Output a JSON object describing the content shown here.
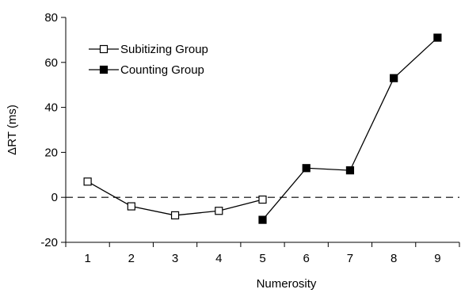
{
  "chart_data": {
    "type": "line",
    "xlabel": "Numerosity",
    "ylabel": "ΔRT (ms)",
    "x_ticks": [
      "1",
      "2",
      "3",
      "4",
      "5",
      "6",
      "7",
      "8",
      "9"
    ],
    "y_ticks": [
      "80",
      "60",
      "40",
      "20",
      "0",
      "-20"
    ],
    "xlim": [
      0.5,
      9.5
    ],
    "ylim": [
      -20,
      80
    ],
    "reference_line": {
      "y": 0,
      "style": "dashed"
    },
    "grid": false,
    "legend_position": "top-left",
    "series": [
      {
        "name": "Subitizing Group",
        "marker": "open-square",
        "points": [
          {
            "x": 1,
            "y": 7
          },
          {
            "x": 2,
            "y": -4
          },
          {
            "x": 3,
            "y": -8
          },
          {
            "x": 4,
            "y": -6
          },
          {
            "x": 5,
            "y": -1
          }
        ]
      },
      {
        "name": "Counting Group",
        "marker": "filled-square",
        "points": [
          {
            "x": 5,
            "y": -10
          },
          {
            "x": 6,
            "y": 13
          },
          {
            "x": 7,
            "y": 12
          },
          {
            "x": 8,
            "y": 53
          },
          {
            "x": 9,
            "y": 71
          }
        ]
      }
    ]
  }
}
